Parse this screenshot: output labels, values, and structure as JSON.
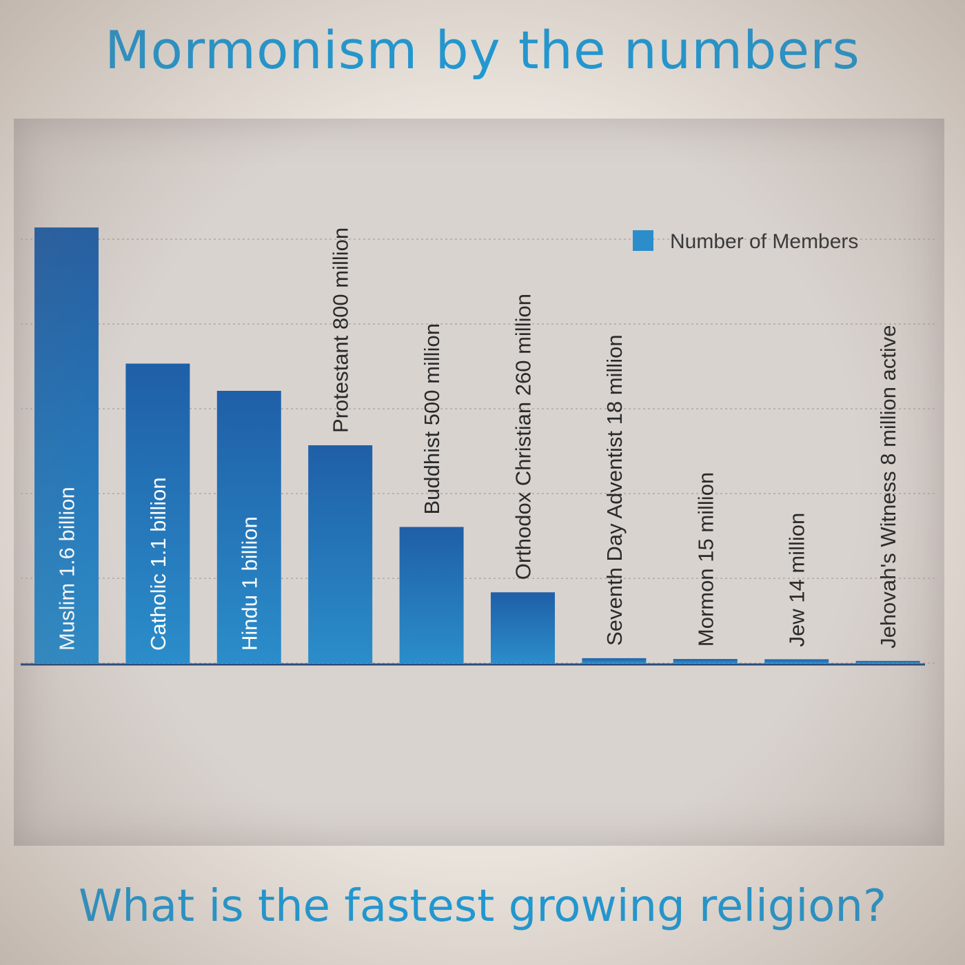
{
  "header": {
    "title": "Mormonism by the numbers",
    "subtitle": "What is the fastest growing religion?"
  },
  "chart_data": {
    "type": "bar",
    "legend": {
      "label": "Number of Members",
      "position": "top-right"
    },
    "grid": true,
    "series": [
      {
        "name": "Number of Members",
        "color": "#1f5fa8"
      }
    ],
    "categories": [
      "Muslim 1.6 billion",
      "Catholic 1.1 billion",
      "Hindu 1 billion",
      "Protestant 800 million",
      "Buddhist 500 million",
      "Orthodox Christian 260 million",
      "Seventh Day Adventist 18 million",
      "Mormon 15 million",
      "Jew 14 million",
      "Jehovah's Witness 8 million active"
    ],
    "values": [
      1600,
      1100,
      1000,
      800,
      500,
      260,
      18,
      15,
      14,
      8
    ],
    "value_unit": "millions",
    "ylim": [
      0,
      2000
    ],
    "colors": {
      "bar_dark": "#1f5fa8",
      "bar_light": "#2b8dca",
      "label_inside": "#ffffff",
      "label_outside": "#2a2a2a",
      "grid": "#b9b2ad",
      "axis": "#2a4a7a"
    }
  }
}
